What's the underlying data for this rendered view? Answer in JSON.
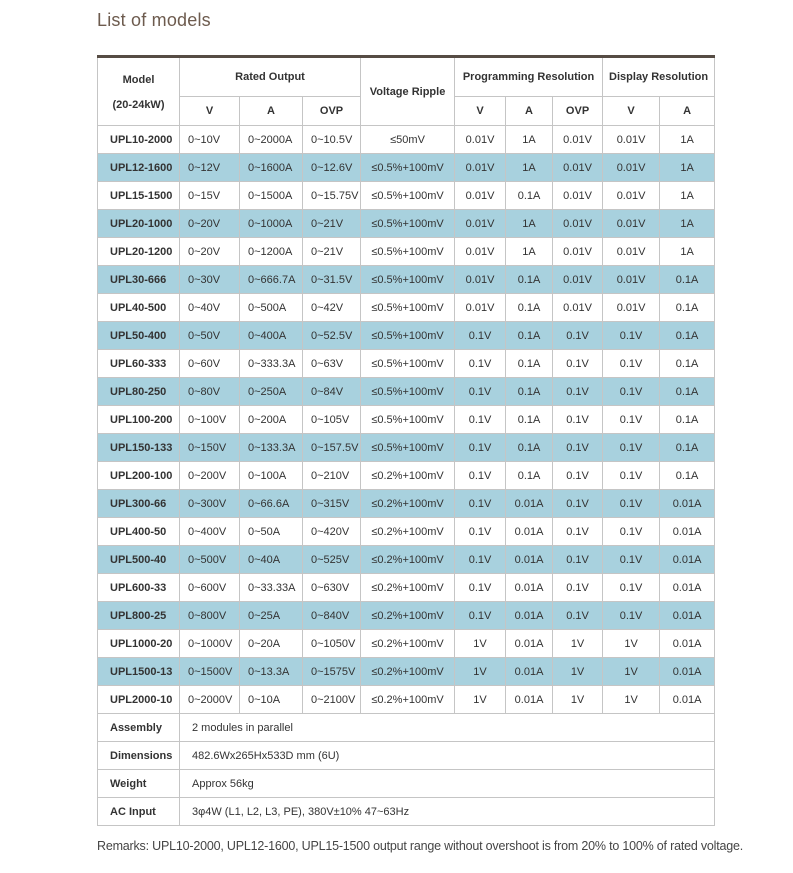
{
  "page": {
    "title": "List of models",
    "remarks": "Remarks: UPL10-2000, UPL12-1600, UPL15-1500 output range without overshoot is from 20% to 100% of rated voltage."
  },
  "colors": {
    "row_highlight": "#a8d1de",
    "title_text": "#6d5b4e",
    "table_top_border": "#564c44",
    "cell_border": "#c5c5c5"
  },
  "table": {
    "header": {
      "model_line1": "Model",
      "model_line2": "(20-24kW)",
      "groups": [
        {
          "label": "Rated Output",
          "cols": [
            "V",
            "A",
            "OVP"
          ]
        },
        {
          "label": "Voltage Ripple",
          "cols": []
        },
        {
          "label": "Programming Resolution",
          "cols": [
            "V",
            "A",
            "OVP"
          ]
        },
        {
          "label": "Display Resolution",
          "cols": [
            "V",
            "A"
          ]
        }
      ]
    },
    "row_keys": [
      "model",
      "v",
      "a",
      "ovp",
      "ripple",
      "prog_v",
      "prog_a",
      "prog_ovp",
      "disp_v",
      "disp_a"
    ],
    "rows": [
      {
        "model": "UPL10-2000",
        "v": "0~10V",
        "a": "0~2000A",
        "ovp": "0~10.5V",
        "ripple": "≤50mV",
        "prog_v": "0.01V",
        "prog_a": "1A",
        "prog_ovp": "0.01V",
        "disp_v": "0.01V",
        "disp_a": "1A"
      },
      {
        "model": "UPL12-1600",
        "v": "0~12V",
        "a": "0~1600A",
        "ovp": "0~12.6V",
        "ripple": "≤0.5%+100mV",
        "prog_v": "0.01V",
        "prog_a": "1A",
        "prog_ovp": "0.01V",
        "disp_v": "0.01V",
        "disp_a": "1A"
      },
      {
        "model": "UPL15-1500",
        "v": "0~15V",
        "a": "0~1500A",
        "ovp": "0~15.75V",
        "ripple": "≤0.5%+100mV",
        "prog_v": "0.01V",
        "prog_a": "0.1A",
        "prog_ovp": "0.01V",
        "disp_v": "0.01V",
        "disp_a": "1A"
      },
      {
        "model": "UPL20-1000",
        "v": "0~20V",
        "a": "0~1000A",
        "ovp": "0~21V",
        "ripple": "≤0.5%+100mV",
        "prog_v": "0.01V",
        "prog_a": "1A",
        "prog_ovp": "0.01V",
        "disp_v": "0.01V",
        "disp_a": "1A"
      },
      {
        "model": "UPL20-1200",
        "v": "0~20V",
        "a": "0~1200A",
        "ovp": "0~21V",
        "ripple": "≤0.5%+100mV",
        "prog_v": "0.01V",
        "prog_a": "1A",
        "prog_ovp": "0.01V",
        "disp_v": "0.01V",
        "disp_a": "1A"
      },
      {
        "model": "UPL30-666",
        "v": "0~30V",
        "a": "0~666.7A",
        "ovp": "0~31.5V",
        "ripple": "≤0.5%+100mV",
        "prog_v": "0.01V",
        "prog_a": "0.1A",
        "prog_ovp": "0.01V",
        "disp_v": "0.01V",
        "disp_a": "0.1A"
      },
      {
        "model": "UPL40-500",
        "v": "0~40V",
        "a": "0~500A",
        "ovp": "0~42V",
        "ripple": "≤0.5%+100mV",
        "prog_v": "0.01V",
        "prog_a": "0.1A",
        "prog_ovp": "0.01V",
        "disp_v": "0.01V",
        "disp_a": "0.1A"
      },
      {
        "model": "UPL50-400",
        "v": "0~50V",
        "a": "0~400A",
        "ovp": "0~52.5V",
        "ripple": "≤0.5%+100mV",
        "prog_v": "0.1V",
        "prog_a": "0.1A",
        "prog_ovp": "0.1V",
        "disp_v": "0.1V",
        "disp_a": "0.1A"
      },
      {
        "model": "UPL60-333",
        "v": "0~60V",
        "a": "0~333.3A",
        "ovp": "0~63V",
        "ripple": "≤0.5%+100mV",
        "prog_v": "0.1V",
        "prog_a": "0.1A",
        "prog_ovp": "0.1V",
        "disp_v": "0.1V",
        "disp_a": "0.1A"
      },
      {
        "model": "UPL80-250",
        "v": "0~80V",
        "a": "0~250A",
        "ovp": "0~84V",
        "ripple": "≤0.5%+100mV",
        "prog_v": "0.1V",
        "prog_a": "0.1A",
        "prog_ovp": "0.1V",
        "disp_v": "0.1V",
        "disp_a": "0.1A"
      },
      {
        "model": "UPL100-200",
        "v": "0~100V",
        "a": "0~200A",
        "ovp": "0~105V",
        "ripple": "≤0.5%+100mV",
        "prog_v": "0.1V",
        "prog_a": "0.1A",
        "prog_ovp": "0.1V",
        "disp_v": "0.1V",
        "disp_a": "0.1A"
      },
      {
        "model": "UPL150-133",
        "v": "0~150V",
        "a": "0~133.3A",
        "ovp": "0~157.5V",
        "ripple": "≤0.5%+100mV",
        "prog_v": "0.1V",
        "prog_a": "0.1A",
        "prog_ovp": "0.1V",
        "disp_v": "0.1V",
        "disp_a": "0.1A"
      },
      {
        "model": "UPL200-100",
        "v": "0~200V",
        "a": "0~100A",
        "ovp": "0~210V",
        "ripple": "≤0.2%+100mV",
        "prog_v": "0.1V",
        "prog_a": "0.1A",
        "prog_ovp": "0.1V",
        "disp_v": "0.1V",
        "disp_a": "0.1A"
      },
      {
        "model": "UPL300-66",
        "v": "0~300V",
        "a": "0~66.6A",
        "ovp": "0~315V",
        "ripple": "≤0.2%+100mV",
        "prog_v": "0.1V",
        "prog_a": "0.01A",
        "prog_ovp": "0.1V",
        "disp_v": "0.1V",
        "disp_a": "0.01A"
      },
      {
        "model": "UPL400-50",
        "v": "0~400V",
        "a": "0~50A",
        "ovp": "0~420V",
        "ripple": "≤0.2%+100mV",
        "prog_v": "0.1V",
        "prog_a": "0.01A",
        "prog_ovp": "0.1V",
        "disp_v": "0.1V",
        "disp_a": "0.01A"
      },
      {
        "model": "UPL500-40",
        "v": "0~500V",
        "a": "0~40A",
        "ovp": "0~525V",
        "ripple": "≤0.2%+100mV",
        "prog_v": "0.1V",
        "prog_a": "0.01A",
        "prog_ovp": "0.1V",
        "disp_v": "0.1V",
        "disp_a": "0.01A"
      },
      {
        "model": "UPL600-33",
        "v": "0~600V",
        "a": "0~33.33A",
        "ovp": "0~630V",
        "ripple": "≤0.2%+100mV",
        "prog_v": "0.1V",
        "prog_a": "0.01A",
        "prog_ovp": "0.1V",
        "disp_v": "0.1V",
        "disp_a": "0.01A"
      },
      {
        "model": "UPL800-25",
        "v": "0~800V",
        "a": "0~25A",
        "ovp": "0~840V",
        "ripple": "≤0.2%+100mV",
        "prog_v": "0.1V",
        "prog_a": "0.01A",
        "prog_ovp": "0.1V",
        "disp_v": "0.1V",
        "disp_a": "0.01A"
      },
      {
        "model": "UPL1000-20",
        "v": "0~1000V",
        "a": "0~20A",
        "ovp": "0~1050V",
        "ripple": "≤0.2%+100mV",
        "prog_v": "1V",
        "prog_a": "0.01A",
        "prog_ovp": "1V",
        "disp_v": "1V",
        "disp_a": "0.01A"
      },
      {
        "model": "UPL1500-13",
        "v": "0~1500V",
        "a": "0~13.3A",
        "ovp": "0~1575V",
        "ripple": "≤0.2%+100mV",
        "prog_v": "1V",
        "prog_a": "0.01A",
        "prog_ovp": "1V",
        "disp_v": "1V",
        "disp_a": "0.01A"
      },
      {
        "model": "UPL2000-10",
        "v": "0~2000V",
        "a": "0~10A",
        "ovp": "0~2100V",
        "ripple": "≤0.2%+100mV",
        "prog_v": "1V",
        "prog_a": "0.01A",
        "prog_ovp": "1V",
        "disp_v": "1V",
        "disp_a": "0.01A"
      }
    ],
    "specs": [
      {
        "label": "Assembly",
        "value": "2 modules in parallel"
      },
      {
        "label": "Dimensions",
        "value": "482.6Wx265Hx533D mm (6U)"
      },
      {
        "label": "Weight",
        "value": "Approx 56kg"
      },
      {
        "label": "AC Input",
        "value": "3φ4W (L1, L2, L3, PE), 380V±10% 47~63Hz"
      }
    ]
  }
}
